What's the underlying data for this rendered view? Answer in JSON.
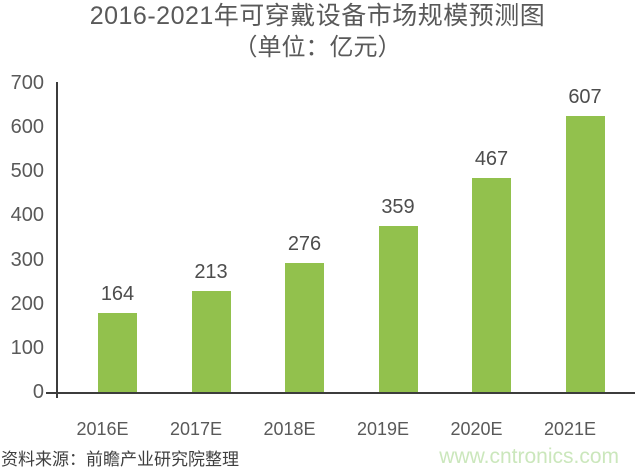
{
  "chart_data": {
    "type": "bar",
    "title": "2016-2021年可穿戴设备市场规模预测图",
    "subtitle": "（单位：亿元）",
    "categories": [
      "2016E",
      "2017E",
      "2018E",
      "2019E",
      "2020E",
      "2021E"
    ],
    "values": [
      164,
      213,
      276,
      359,
      467,
      607
    ],
    "yticks": [
      0,
      100,
      200,
      300,
      400,
      500,
      600,
      700
    ],
    "ylim": [
      0,
      700
    ],
    "ytick_interval": 100,
    "xlabel": "",
    "ylabel": "",
    "grid": false,
    "legend": null,
    "bar_color": "#92C14D",
    "axis_color": "#3C3C3C",
    "label_color": "#595959"
  },
  "footer": {
    "source": "资料来源：前瞻产业研究院整理",
    "watermark": "www.cntronics.com",
    "watermark_color": "#CBE7BC"
  }
}
